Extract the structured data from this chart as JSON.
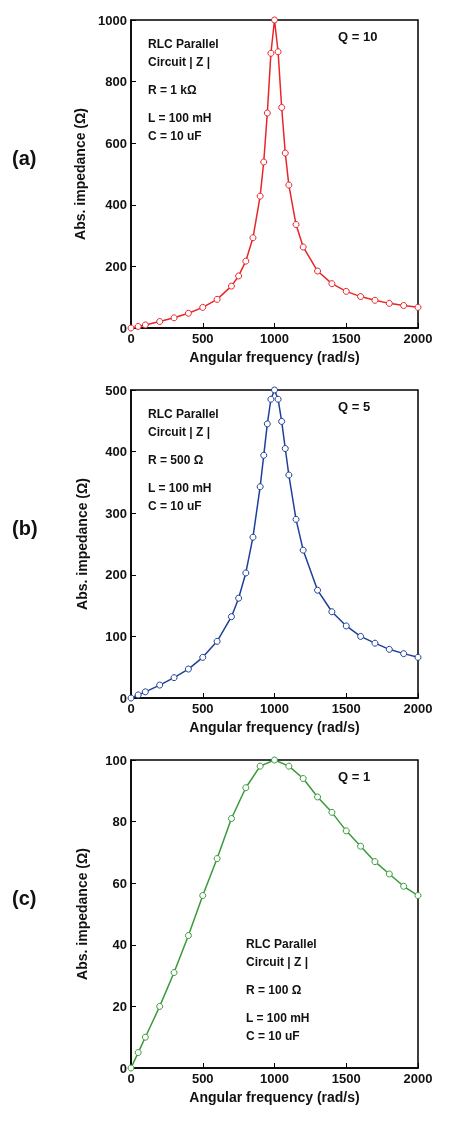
{
  "chart_data": [
    {
      "type": "line",
      "xlabel": "Angular frequency (rad/s)",
      "ylabel": "Abs. impedance (Ω)",
      "annotations": [
        "(a)",
        "RLC Parallel",
        "Circuit | Z |",
        "R = 1 kΩ",
        "L = 100 mH",
        "C = 10 uF",
        "Q = 10"
      ],
      "x": [
        0,
        50,
        100,
        200,
        300,
        400,
        500,
        600,
        700,
        750,
        800,
        850,
        900,
        925,
        950,
        975,
        1000,
        1025,
        1050,
        1075,
        1100,
        1150,
        1200,
        1300,
        1400,
        1500,
        1600,
        1700,
        1800,
        1900,
        2000
      ],
      "series": [
        {
          "color": "#e8262a",
          "values": [
            0,
            5,
            10,
            21,
            33,
            48,
            67,
            93,
            136,
            169,
            217,
            293,
            428,
            539,
            698,
            892,
            1000,
            897,
            716,
            568,
            464,
            336,
            263,
            185,
            144,
            119,
            102,
            90,
            80,
            73,
            67
          ]
        }
      ],
      "xlim": [
        0,
        2000
      ],
      "xticks": [
        0,
        500,
        1000,
        1500,
        2000
      ],
      "ylim": [
        0,
        1000
      ],
      "yticks": [
        0,
        200,
        400,
        600,
        800,
        1000
      ],
      "grid": false,
      "marker": "circle",
      "line_style": "solid"
    },
    {
      "type": "line",
      "xlabel": "Angular frequency (rad/s)",
      "ylabel": "Abs. impedance (Ω)",
      "annotations": [
        "(b)",
        "RLC Parallel",
        "Circuit | Z |",
        "R = 500 Ω",
        "L = 100 mH",
        "C = 10 uF",
        "Q = 5"
      ],
      "x": [
        0,
        50,
        100,
        200,
        300,
        400,
        500,
        600,
        700,
        750,
        800,
        850,
        900,
        925,
        950,
        975,
        1000,
        1025,
        1050,
        1075,
        1100,
        1150,
        1200,
        1300,
        1400,
        1500,
        1600,
        1700,
        1800,
        1900,
        2000
      ],
      "series": [
        {
          "color": "#1f3f99",
          "values": [
            0,
            5,
            10,
            21,
            33,
            47,
            66,
            92,
            132,
            162,
            203,
            261,
            343,
            394,
            445,
            485,
            500,
            485,
            449,
            405,
            362,
            290,
            240,
            175,
            140,
            117,
            100,
            89,
            79,
            72,
            66
          ]
        }
      ],
      "xlim": [
        0,
        2000
      ],
      "xticks": [
        0,
        500,
        1000,
        1500,
        2000
      ],
      "ylim": [
        0,
        500
      ],
      "yticks": [
        0,
        100,
        200,
        300,
        400,
        500
      ],
      "grid": false,
      "marker": "circle",
      "line_style": "solid"
    },
    {
      "type": "line",
      "xlabel": "Angular frequency (rad/s)",
      "ylabel": "Abs. impedance (Ω)",
      "annotations": [
        "(c)",
        "RLC Parallel",
        "Circuit | Z |",
        "R = 100 Ω",
        "L = 100 mH",
        "C = 10 uF",
        "Q = 1"
      ],
      "x": [
        0,
        50,
        100,
        200,
        300,
        400,
        500,
        600,
        700,
        800,
        900,
        1000,
        1100,
        1200,
        1300,
        1400,
        1500,
        1600,
        1700,
        1800,
        1900,
        2000
      ],
      "series": [
        {
          "color": "#3a9a3a",
          "values": [
            0,
            5,
            10,
            20,
            31,
            43,
            56,
            68,
            81,
            91,
            98,
            100,
            98,
            94,
            88,
            83,
            77,
            72,
            67,
            63,
            59,
            56
          ]
        }
      ],
      "xlim": [
        0,
        2000
      ],
      "xticks": [
        0,
        500,
        1000,
        1500,
        2000
      ],
      "ylim": [
        0,
        100
      ],
      "yticks": [
        0,
        20,
        40,
        60,
        80,
        100
      ],
      "grid": false,
      "marker": "circle",
      "line_style": "solid"
    }
  ]
}
